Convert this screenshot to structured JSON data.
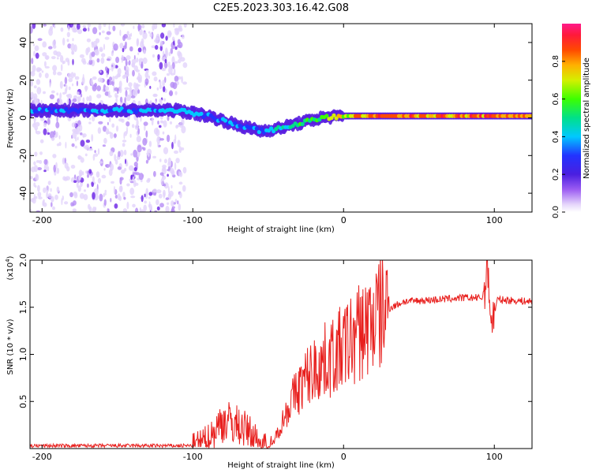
{
  "title": "C2E5.2023.303.16.42.G08",
  "chart_data": [
    {
      "type": "heatmap",
      "xlabel": "Height of straight line (km)",
      "ylabel": "Frequency (Hz)",
      "xlim": [
        -208,
        125
      ],
      "ylim": [
        -50,
        50
      ],
      "xticks": [
        -200,
        -100,
        0,
        100
      ],
      "yticks": [
        -40,
        -20,
        0,
        20,
        40
      ],
      "colorbar": {
        "label": "Normalized spectral amplitude",
        "range": [
          0.0,
          1.0
        ],
        "ticks": [
          "0.0",
          "0.2",
          "0.4",
          "0.6",
          "0.8"
        ],
        "tick_values": [
          0.0,
          0.2,
          0.4,
          0.6,
          0.8
        ]
      },
      "ridge": {
        "description_points": [
          [
            -208,
            4
          ],
          [
            -150,
            4
          ],
          [
            -110,
            4
          ],
          [
            -90,
            1
          ],
          [
            -70,
            -4
          ],
          [
            -55,
            -7
          ],
          [
            -45,
            -6
          ],
          [
            -30,
            -3
          ],
          [
            -15,
            0
          ],
          [
            0,
            1
          ],
          [
            20,
            1
          ],
          [
            125,
            1
          ]
        ],
        "amplitude_points": [
          [
            -208,
            0.4
          ],
          [
            -110,
            0.45
          ],
          [
            -60,
            0.4
          ],
          [
            -30,
            0.6
          ],
          [
            0,
            0.75
          ],
          [
            20,
            0.9
          ],
          [
            125,
            0.9
          ]
        ]
      },
      "noise_region": [
        -208,
        -105
      ]
    },
    {
      "type": "line",
      "xlabel": "Height of straight line (km)",
      "ylabel": "SNR (10 * v/v)",
      "yunit": "(x10",
      "yunit_exp": "4",
      "yunit_close": ")",
      "xlim": [
        -208,
        125
      ],
      "ylim": [
        0,
        2.0
      ],
      "xticks": [
        -200,
        -100,
        0,
        100
      ],
      "yticks": [
        0.5,
        1.0,
        1.5,
        2.0
      ],
      "ytick_labels": [
        "0.5",
        "1.0",
        "1.5",
        "2.0"
      ],
      "series": [
        {
          "color": "#e8201e",
          "points": [
            [
              -208,
              0.03
            ],
            [
              -100,
              0.03
            ],
            [
              -90,
              0.1
            ],
            [
              -80,
              0.3
            ],
            [
              -70,
              0.25
            ],
            [
              -60,
              0.15
            ],
            [
              -55,
              0.05
            ],
            [
              -48,
              0.02
            ],
            [
              -43,
              0.2
            ],
            [
              -35,
              0.5
            ],
            [
              -25,
              0.75
            ],
            [
              -15,
              0.9
            ],
            [
              -5,
              1.0
            ],
            [
              5,
              1.15
            ],
            [
              15,
              1.3
            ],
            [
              25,
              1.45
            ],
            [
              40,
              1.56
            ],
            [
              60,
              1.58
            ],
            [
              80,
              1.6
            ],
            [
              92,
              1.6
            ],
            [
              96,
              1.9
            ],
            [
              98,
              1.3
            ],
            [
              102,
              1.58
            ],
            [
              125,
              1.56
            ]
          ]
        }
      ]
    }
  ]
}
